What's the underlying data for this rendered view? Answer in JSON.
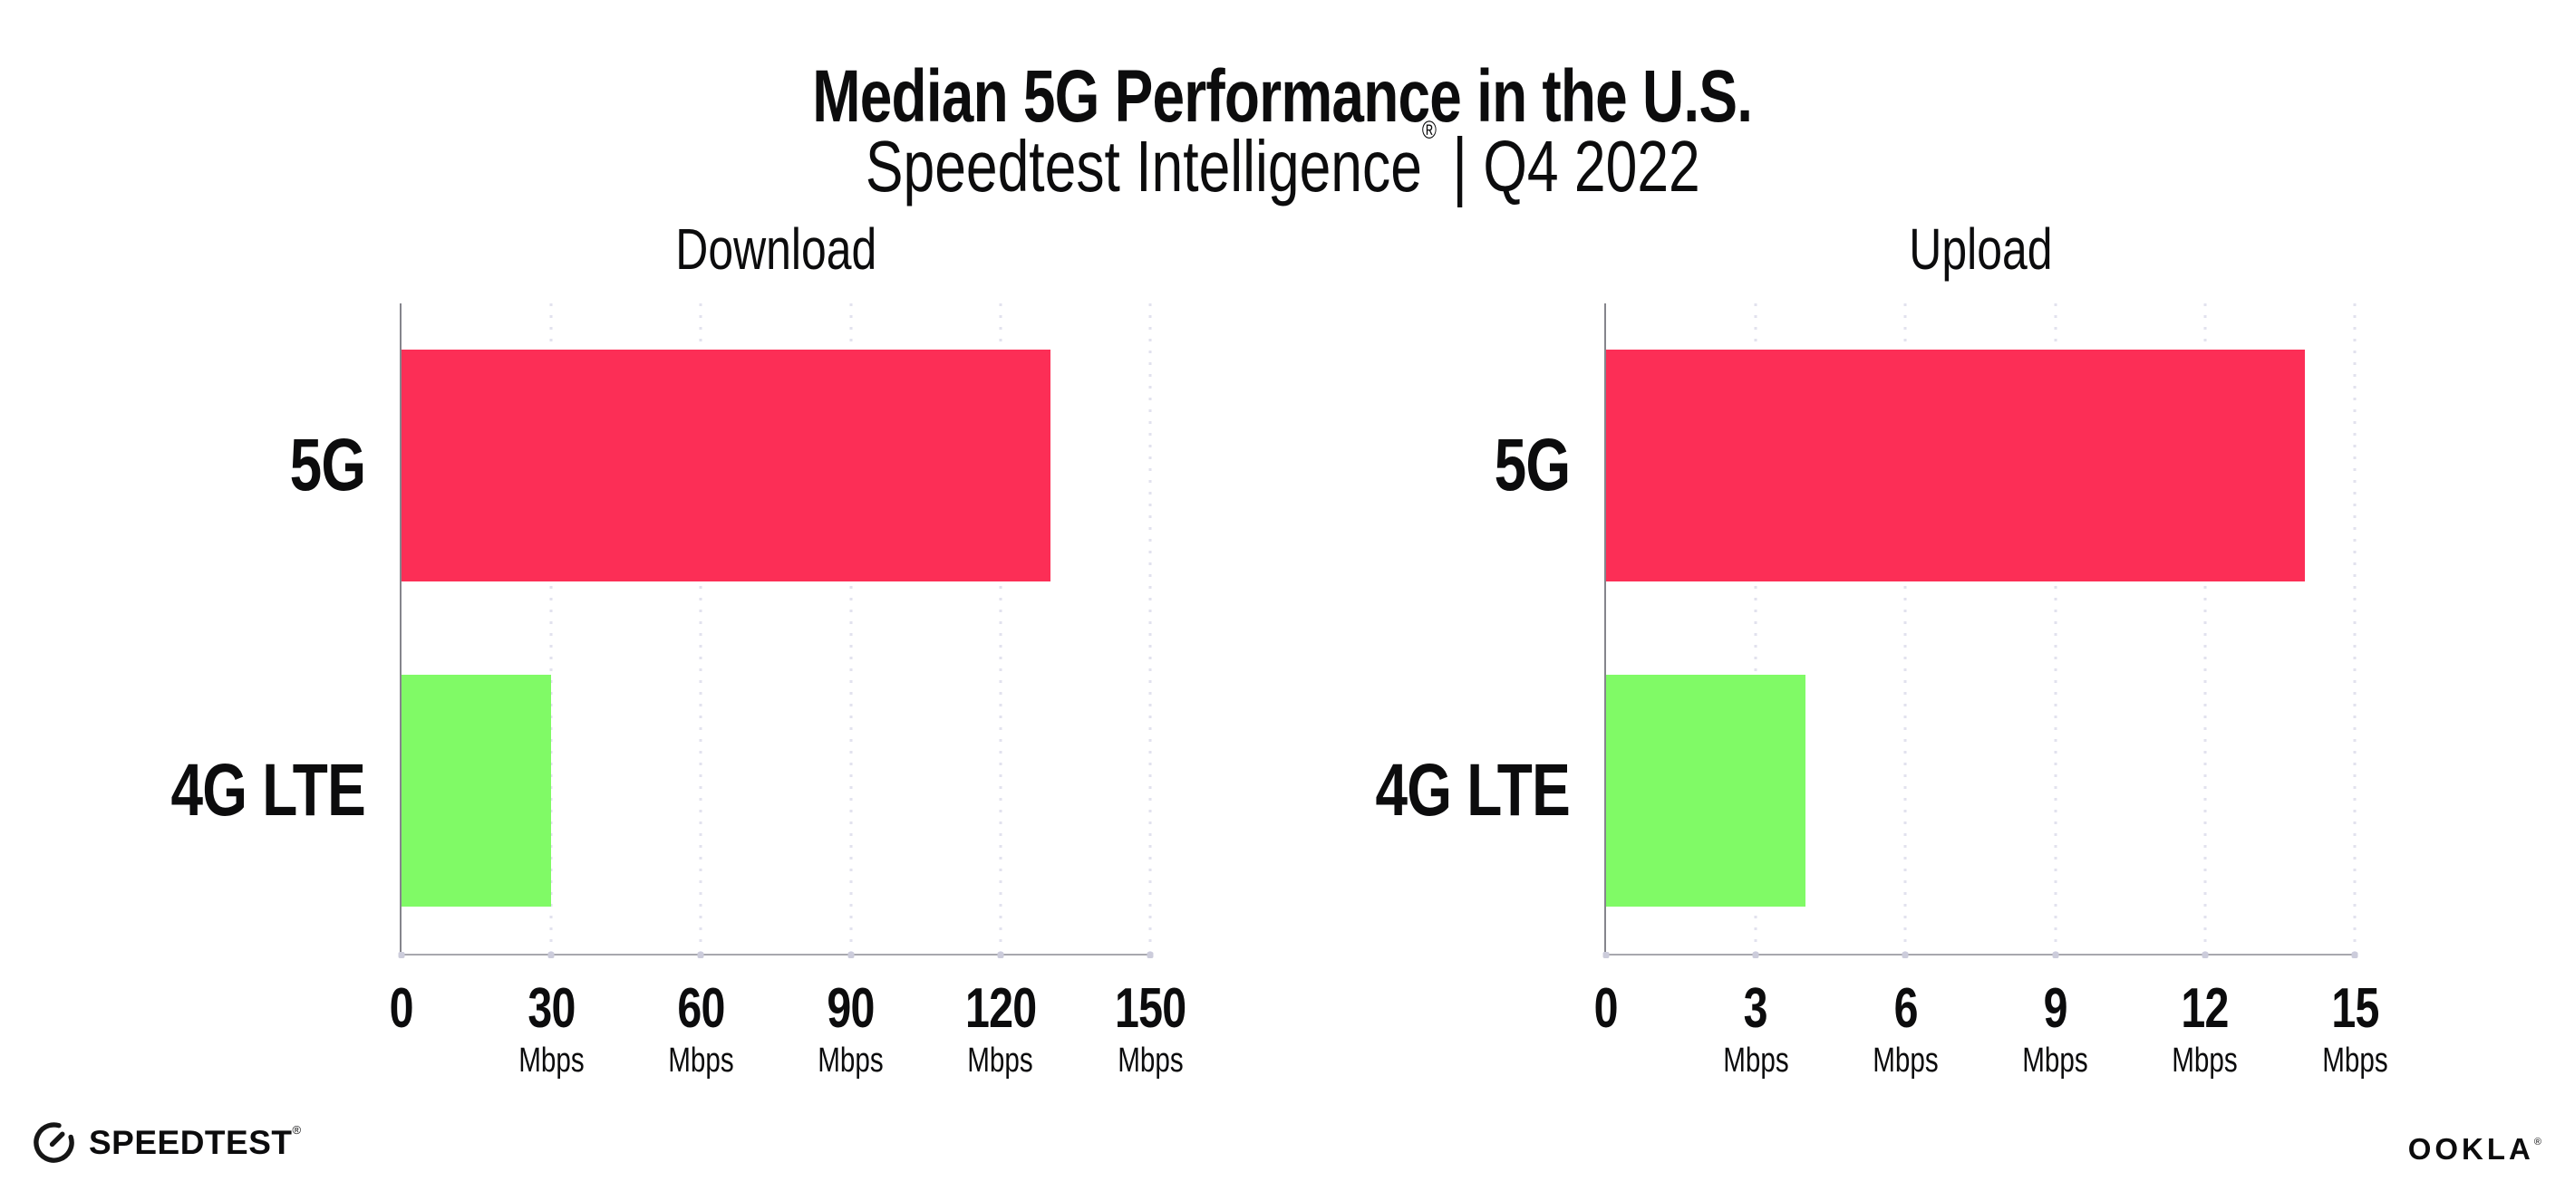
{
  "header": {
    "title": "Median 5G Performance in the U.S.",
    "subtitle_product": "Speedtest Intelligence",
    "subtitle_trademark": "®",
    "subtitle_divider": "|",
    "subtitle_quarter": "Q4 2022"
  },
  "chart_data": [
    {
      "type": "bar",
      "orientation": "horizontal",
      "title": "Download",
      "categories": [
        "5G",
        "4G LTE"
      ],
      "values": [
        130,
        30
      ],
      "unit": "Mbps",
      "xlim": [
        0,
        150
      ],
      "xticks": [
        0,
        30,
        60,
        90,
        120,
        150
      ],
      "tick_unit_label": "Mbps",
      "zero_tick_shows_unit": false,
      "grid": "dotted-vertical",
      "legend": "none",
      "bar_colors": [
        "#fc2e56",
        "#80fa66"
      ]
    },
    {
      "type": "bar",
      "orientation": "horizontal",
      "title": "Upload",
      "categories": [
        "5G",
        "4G LTE"
      ],
      "values": [
        14,
        4
      ],
      "unit": "Mbps",
      "xlim": [
        0,
        15
      ],
      "xticks": [
        0,
        3,
        6,
        9,
        12,
        15
      ],
      "tick_unit_label": "Mbps",
      "zero_tick_shows_unit": false,
      "grid": "dotted-vertical",
      "legend": "none",
      "bar_colors": [
        "#fc2e56",
        "#80fa66"
      ]
    }
  ],
  "colors": {
    "bar_5g": "#fc2e56",
    "bar_4g_lte": "#80fa66",
    "x_axis_line": "#a8a8ae",
    "y_axis_line": "#85858c",
    "gridline": "#e2e2ee",
    "text": "#0c0c0d",
    "background": "#ffffff"
  },
  "footer": {
    "speedtest_label": "SPEEDTEST",
    "speedtest_trademark": "®",
    "ookla_label": "OOKLA",
    "ookla_trademark": "®"
  }
}
